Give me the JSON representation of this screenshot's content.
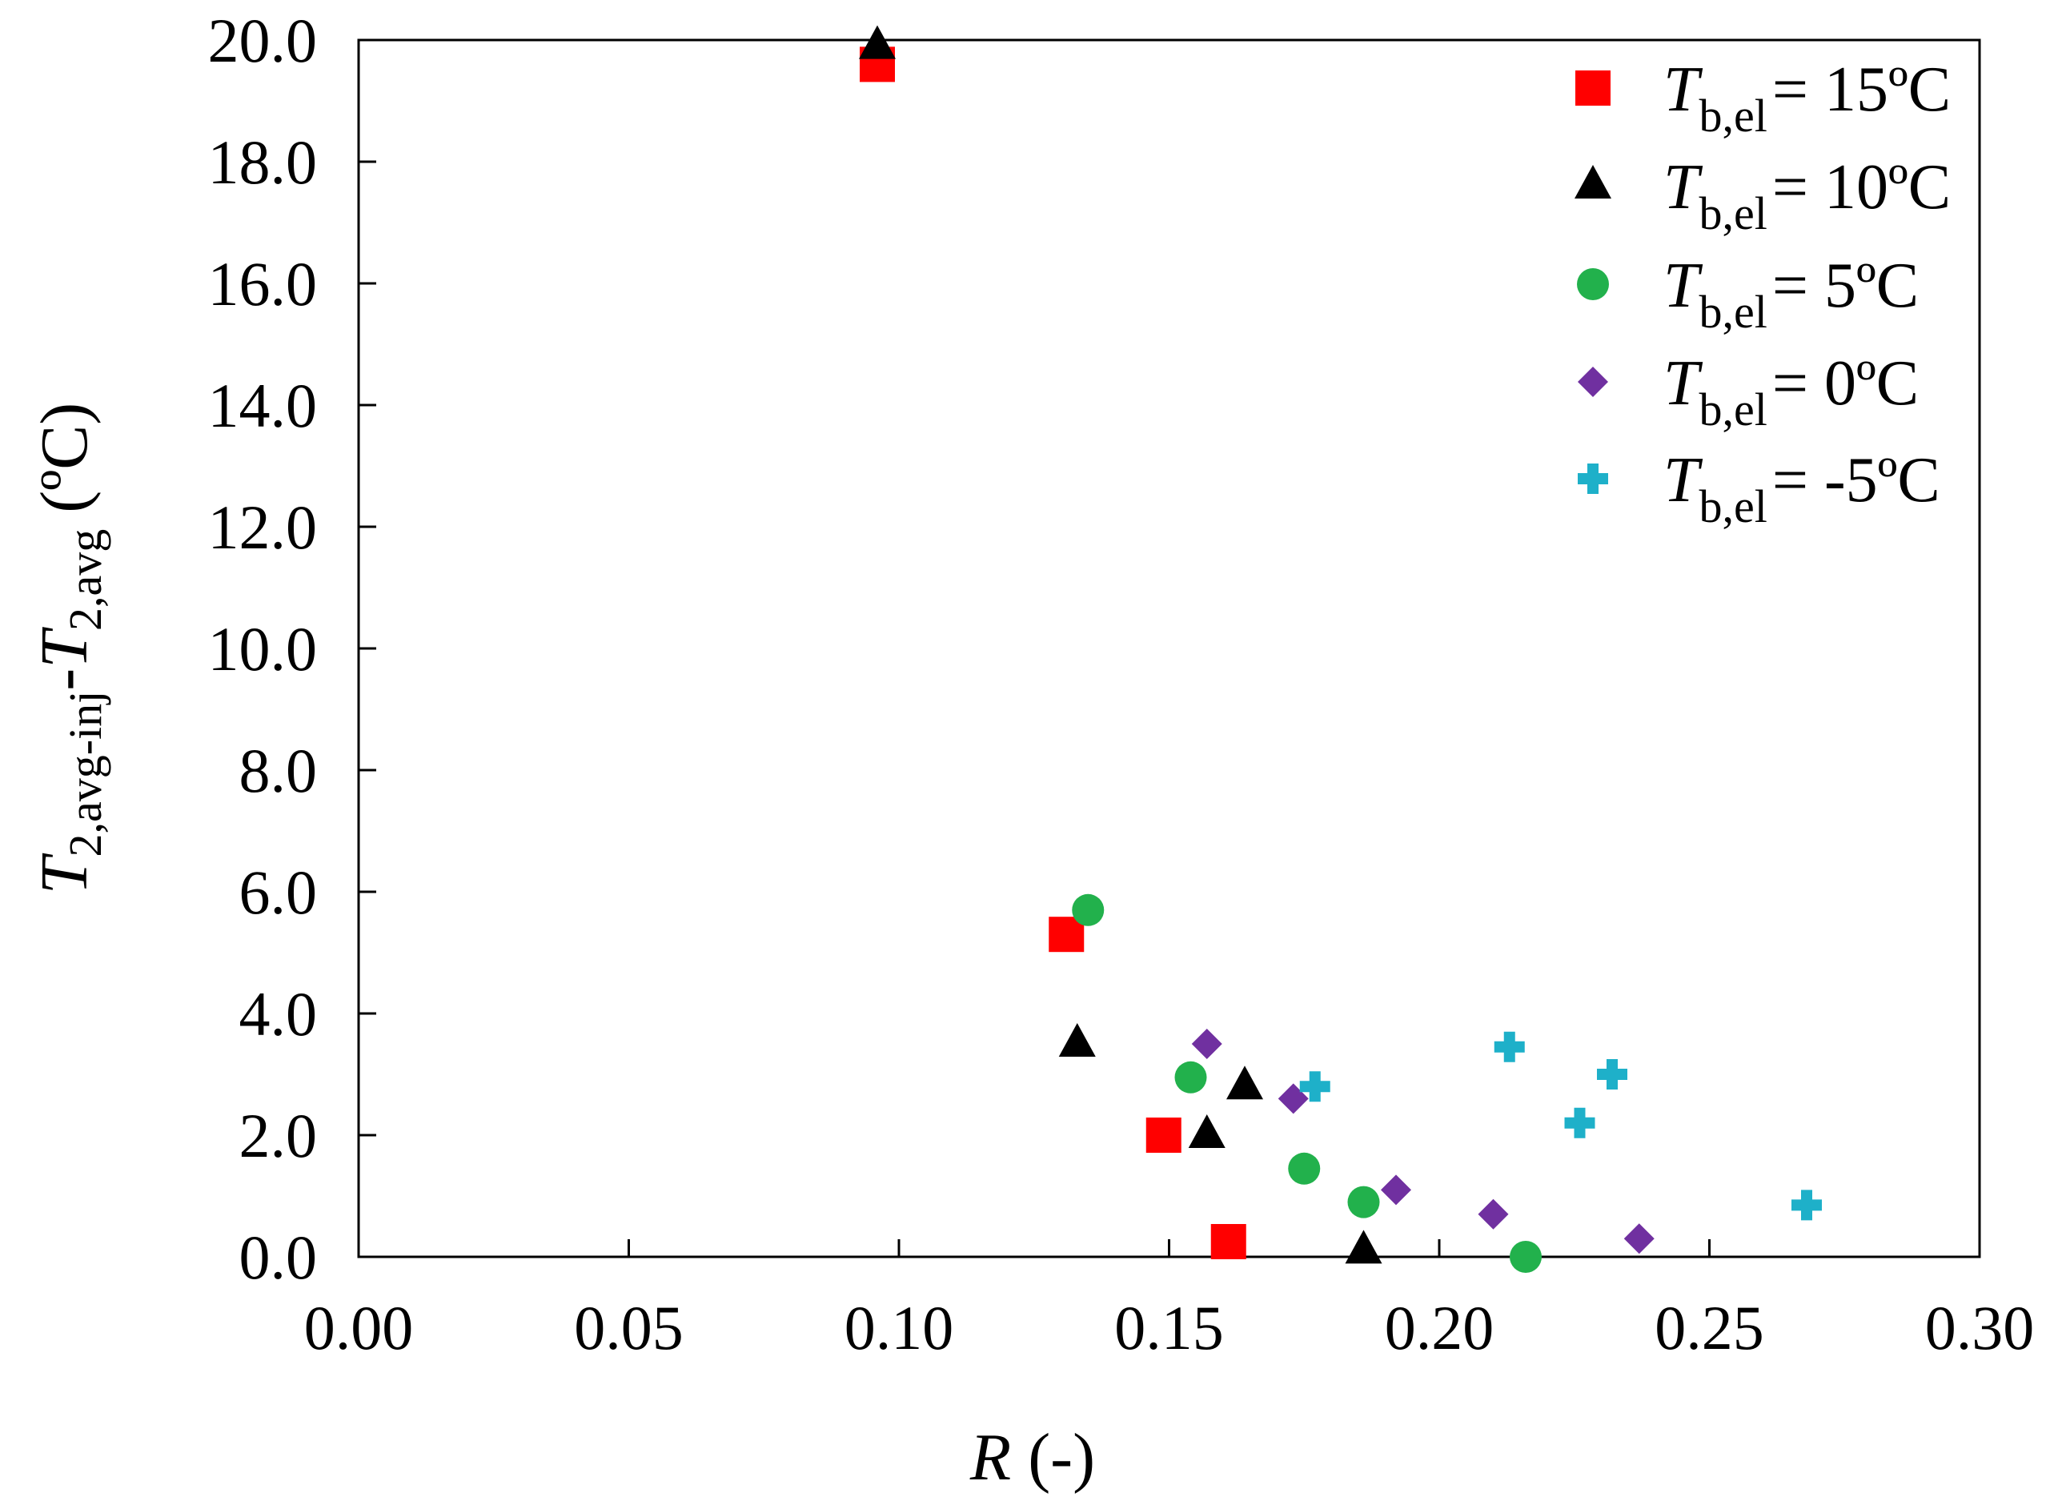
{
  "chart_data": {
    "type": "scatter",
    "title": "",
    "xlabel": {
      "symbol": "R",
      "rest": " (-)"
    },
    "ylabel": {
      "symbol": "T",
      "sub1": "2,avg-inj",
      "dash": "-",
      "symbol2": "T",
      "sub2": "2,avg",
      "unit": "(ºC)"
    },
    "xlim": [
      0.0,
      0.3
    ],
    "ylim": [
      0.0,
      20.0
    ],
    "xticks": [
      0.0,
      0.05,
      0.1,
      0.15,
      0.2,
      0.25,
      0.3
    ],
    "yticks": [
      0.0,
      2.0,
      4.0,
      6.0,
      8.0,
      10.0,
      12.0,
      14.0,
      16.0,
      18.0,
      20.0
    ],
    "xtick_labels": [
      "0.00",
      "0.05",
      "0.10",
      "0.15",
      "0.20",
      "0.25",
      "0.30"
    ],
    "ytick_labels": [
      "0.0",
      "2.0",
      "4.0",
      "6.0",
      "8.0",
      "10.0",
      "12.0",
      "14.0",
      "16.0",
      "18.0",
      "20.0"
    ],
    "grid": false,
    "legend_position": "top-right",
    "series": [
      {
        "name": "Tb,el = 15ºC",
        "legend_symbol": "T",
        "legend_sub": "b,el",
        "legend_value": "= 15ºC",
        "marker": "square",
        "color": "#ff0000",
        "points": [
          [
            0.096,
            19.6
          ],
          [
            0.131,
            5.3
          ],
          [
            0.149,
            2.0
          ],
          [
            0.161,
            0.25
          ]
        ]
      },
      {
        "name": "Tb,el = 10ºC",
        "legend_symbol": "T",
        "legend_sub": "b,el",
        "legend_value": "= 10ºC",
        "marker": "triangle",
        "color": "#000000",
        "points": [
          [
            0.096,
            19.9
          ],
          [
            0.133,
            3.5
          ],
          [
            0.157,
            2.0
          ],
          [
            0.164,
            2.8
          ],
          [
            0.186,
            0.1
          ]
        ]
      },
      {
        "name": "Tb,el = 5ºC",
        "legend_symbol": "T",
        "legend_sub": "b,el",
        "legend_value": "= 5ºC",
        "marker": "circle",
        "color": "#22b14c",
        "points": [
          [
            0.135,
            5.7
          ],
          [
            0.154,
            2.95
          ],
          [
            0.175,
            1.45
          ],
          [
            0.186,
            0.9
          ],
          [
            0.216,
            0.0
          ]
        ]
      },
      {
        "name": "Tb,el = 0ºC",
        "legend_symbol": "T",
        "legend_sub": "b,el",
        "legend_value": "= 0ºC",
        "marker": "diamond",
        "color": "#7030a0",
        "points": [
          [
            0.157,
            3.5
          ],
          [
            0.173,
            2.6
          ],
          [
            0.192,
            1.1
          ],
          [
            0.21,
            0.7
          ],
          [
            0.237,
            0.3
          ]
        ]
      },
      {
        "name": "Tb,el = -5ºC",
        "legend_symbol": "T",
        "legend_sub": "b,el",
        "legend_value": "= -5ºC",
        "marker": "cross",
        "color": "#1eb0c9",
        "points": [
          [
            0.177,
            2.8
          ],
          [
            0.213,
            3.45
          ],
          [
            0.226,
            2.2
          ],
          [
            0.232,
            3.0
          ],
          [
            0.268,
            0.85
          ]
        ]
      }
    ]
  }
}
